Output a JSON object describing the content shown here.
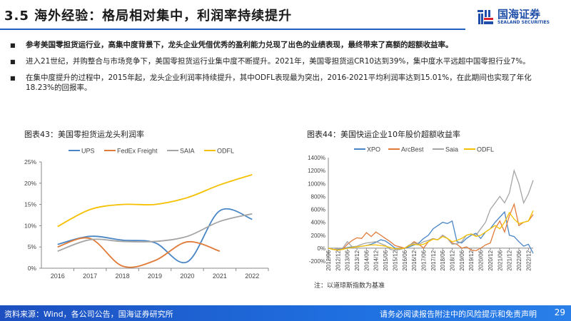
{
  "header": {
    "title": "3.5 海外经验：格局相对集中，利润率持续提升",
    "logo_cn": "国海证券",
    "logo_en": "SEALAND SECURITIES"
  },
  "bullets": [
    "参考美国零担货运行业，高集中度背景下，龙头企业凭借优秀的盈利能力兑现了出色的业绩表现，最终带来了高额的超额收益率。",
    "进入21世纪，并购整合与市场竞争下，美国零担货运行业集中度不断提升。2021年，美国零担货运CR10达到39%，集中度水平远超中国零担行业7%。",
    "在集中度提升的过程中，2015年起，龙头企业利润率持续提升，其中ODFL表现最为突出，2016-2021平均利润率达到15.01%，在此期间也实现了年化18.23%的回报率。"
  ],
  "colors": {
    "blue": "#4a86c5",
    "orange": "#e07b39",
    "gray": "#a5a5a5",
    "yellow": "#f5c000",
    "brand": "#1f5fbf"
  },
  "chart_data": [
    {
      "type": "line",
      "title": "图表43：美国零担货运龙头利润率",
      "categories": [
        "2016",
        "2017",
        "2018",
        "2019",
        "2020",
        "2021",
        "2022"
      ],
      "ylim": [
        0,
        25
      ],
      "yticks": [
        "0%",
        "5%",
        "10%",
        "15%",
        "20%",
        "25%"
      ],
      "legend": "top",
      "grid": false,
      "series": [
        {
          "name": "UPS",
          "color": "#4a86c5",
          "values": [
            5.6,
            7.5,
            6.6,
            6.0,
            1.5,
            13.5,
            11.5
          ]
        },
        {
          "name": "FedEx Freight",
          "color": "#e07b39",
          "values": [
            5.0,
            7.0,
            0.5,
            1.8,
            6.2,
            4.0,
            null
          ]
        },
        {
          "name": "SAIA",
          "color": "#a5a5a5",
          "values": [
            4.0,
            6.7,
            6.3,
            6.3,
            7.5,
            11.0,
            12.8
          ]
        },
        {
          "name": "ODFL",
          "color": "#f5c000",
          "values": [
            9.8,
            13.8,
            15.0,
            15.0,
            16.6,
            19.6,
            22.0
          ]
        }
      ]
    },
    {
      "type": "line",
      "title": "图表44：美国快运企业10年股价超额收益率",
      "note": "注：以道琼斯指数为基准",
      "ylim": [
        -200,
        1400
      ],
      "yticks": [
        "-200%",
        "0%",
        "200%",
        "400%",
        "600%",
        "800%",
        "1000%",
        "1200%",
        "1400%"
      ],
      "legend": "top",
      "grid": false,
      "xticks": [
        "2012/06",
        "2012/12",
        "2013/06",
        "2013/12",
        "2014/06",
        "2014/12",
        "2015/06",
        "2015/12",
        "2016/06",
        "2016/12",
        "2017/06",
        "2017/12",
        "2018/06",
        "2018/12",
        "2019/06",
        "2019/12",
        "2020/06",
        "2020/12",
        "2021/06",
        "2021/12",
        "2022/06",
        "2022/12"
      ],
      "x_start": "2012/06",
      "x_step": "quarterly",
      "series": [
        {
          "name": "XPO",
          "color": "#4a86c5",
          "values": [
            0,
            -20,
            -20,
            -10,
            10,
            20,
            20,
            30,
            40,
            60,
            90,
            130,
            110,
            60,
            0,
            -20,
            0,
            20,
            50,
            80,
            150,
            200,
            300,
            350,
            400,
            380,
            420,
            100,
            80,
            150,
            200,
            230,
            150,
            250,
            300,
            400,
            480,
            560,
            200,
            180,
            100,
            30,
            60,
            -80
          ]
        },
        {
          "name": "ArcBest",
          "color": "#e07b39",
          "values": [
            0,
            -20,
            -30,
            -20,
            60,
            120,
            160,
            150,
            240,
            180,
            250,
            200,
            150,
            100,
            40,
            20,
            0,
            40,
            100,
            60,
            0,
            100,
            140,
            130,
            200,
            150,
            80,
            60,
            0,
            20,
            -30,
            -40,
            0,
            50,
            80,
            300,
            420,
            250,
            500,
            680,
            350,
            400,
            420,
            520
          ]
        },
        {
          "name": "Saia",
          "color": "#a5a5a5",
          "values": [
            0,
            -20,
            -10,
            0,
            100,
            20,
            30,
            60,
            80,
            90,
            100,
            70,
            40,
            -20,
            -30,
            -20,
            0,
            50,
            80,
            60,
            100,
            120,
            150,
            130,
            200,
            150,
            60,
            70,
            100,
            200,
            220,
            200,
            300,
            400,
            600,
            700,
            800,
            700,
            850,
            1200,
            1000,
            700,
            840,
            1050
          ]
        },
        {
          "name": "ODFL",
          "color": "#f5c000",
          "values": [
            0,
            -20,
            -30,
            -20,
            0,
            10,
            20,
            30,
            40,
            50,
            50,
            40,
            30,
            10,
            -10,
            -10,
            0,
            40,
            60,
            50,
            60,
            100,
            140,
            130,
            180,
            150,
            100,
            120,
            150,
            200,
            220,
            180,
            200,
            250,
            300,
            350,
            300,
            400,
            550,
            450,
            380,
            400,
            420,
            580
          ]
        }
      ]
    }
  ],
  "footer": {
    "source": "资料来源：Wind，各公司公告，国海证券研究所",
    "disclaimer": "请务必阅读报告附注中的风险提示和免责声明",
    "page": "29"
  }
}
